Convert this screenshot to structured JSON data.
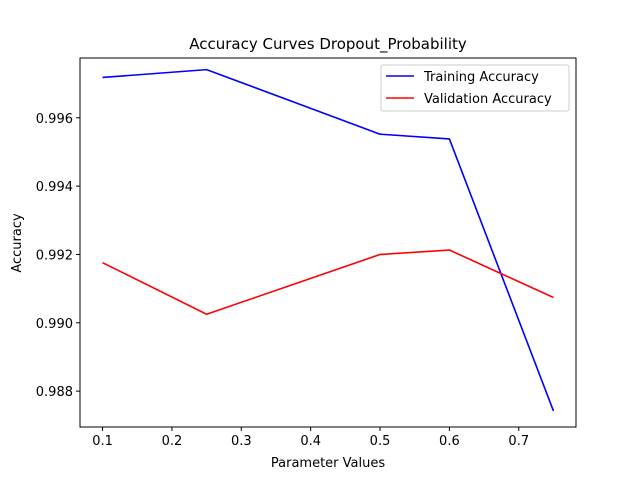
{
  "chart_data": {
    "type": "line",
    "title": "Accuracy Curves Dropout_Probability",
    "xlabel": "Parameter Values",
    "ylabel": "Accuracy",
    "x": [
      0.1,
      0.25,
      0.5,
      0.6,
      0.75
    ],
    "xlim": [
      0.0675,
      0.7825
    ],
    "ylim": [
      0.98695,
      0.99775
    ],
    "xticks": [
      0.1,
      0.2,
      0.3,
      0.4,
      0.5,
      0.6,
      0.7
    ],
    "xtick_labels": [
      "0.1",
      "0.2",
      "0.3",
      "0.4",
      "0.5",
      "0.6",
      "0.7"
    ],
    "yticks": [
      0.988,
      0.99,
      0.992,
      0.994,
      0.996
    ],
    "ytick_labels": [
      "0.988",
      "0.990",
      "0.992",
      "0.994",
      "0.996"
    ],
    "grid": false,
    "legend_position": "top-right",
    "series": [
      {
        "name": "Training Accuracy",
        "color": "#0000ff",
        "values": [
          0.99718,
          0.99741,
          0.99552,
          0.99538,
          0.98742
        ]
      },
      {
        "name": "Validation Accuracy",
        "color": "#ff0000",
        "values": [
          0.99176,
          0.99025,
          0.992,
          0.99213,
          0.99074
        ]
      }
    ]
  }
}
